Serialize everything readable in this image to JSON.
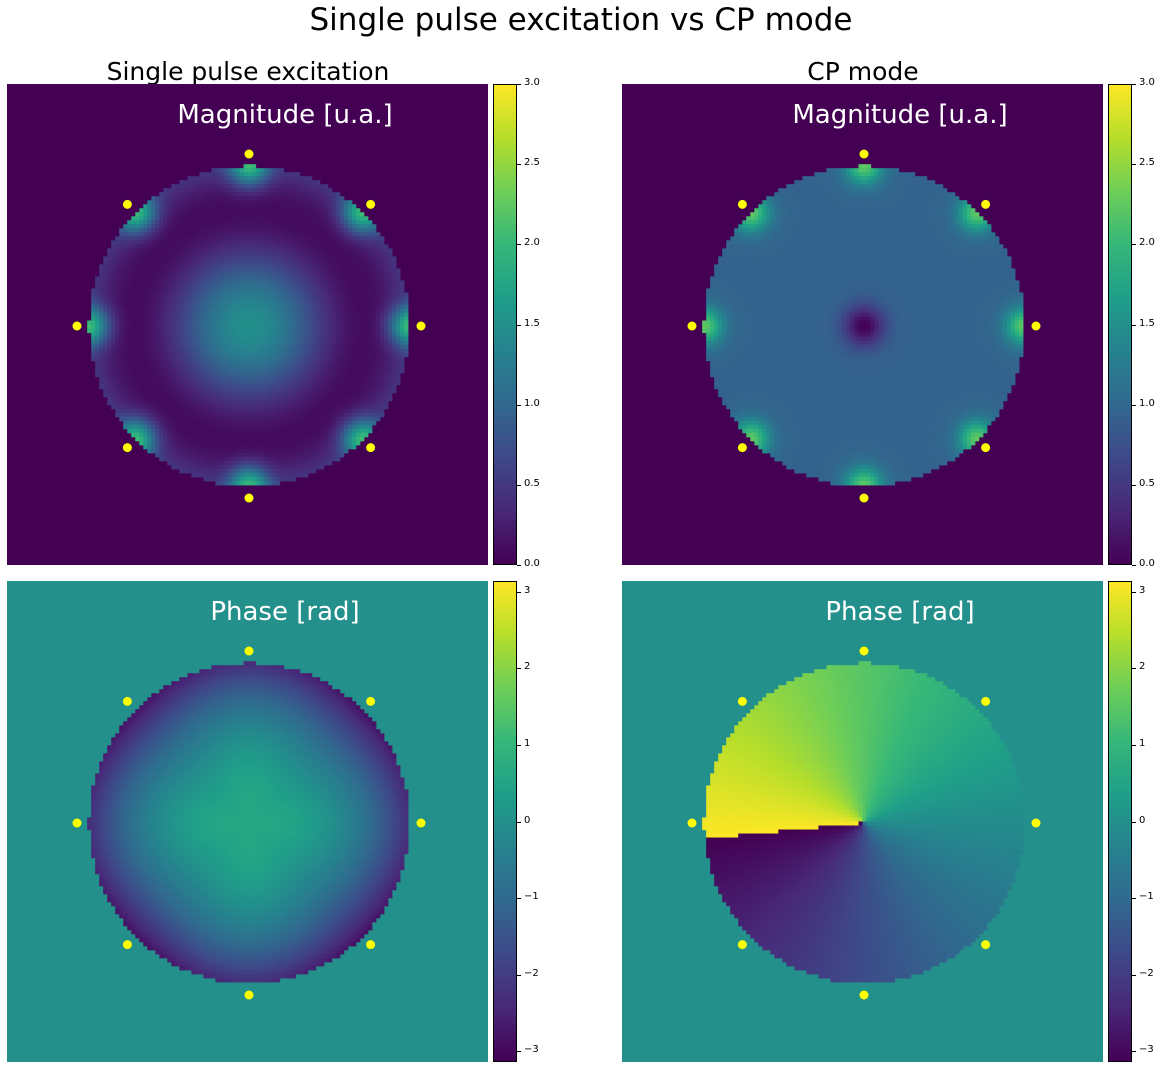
{
  "figure": {
    "suptitle": "Single pulse excitation vs CP mode"
  },
  "columns": [
    {
      "title": "Single pulse excitation"
    },
    {
      "title": "CP mode"
    }
  ],
  "panels": {
    "mag_single": {
      "label": "Magnitude [u.a.]"
    },
    "mag_cp": {
      "label": "Magnitude [u.a.]"
    },
    "phase_single": {
      "label": "Phase [rad]"
    },
    "phase_cp": {
      "label": "Phase [rad]"
    }
  },
  "colorbars": {
    "magnitude": {
      "min": 0.0,
      "max": 3.0,
      "ticks": [
        "0.0",
        "0.5",
        "1.0",
        "1.5",
        "2.0",
        "2.5",
        "3.0"
      ],
      "tick_values": [
        0,
        0.5,
        1.0,
        1.5,
        2.0,
        2.5,
        3.0
      ]
    },
    "phase": {
      "min": -3.14159,
      "max": 3.14159,
      "ticks": [
        "−3",
        "−2",
        "−1",
        "0",
        "1",
        "2",
        "3"
      ],
      "tick_values": [
        -3,
        -2,
        -1,
        0,
        1,
        2,
        3
      ]
    }
  },
  "colors": {
    "viridis": [
      "#440154",
      "#482878",
      "#3e4989",
      "#31688e",
      "#26828e",
      "#1f9e89",
      "#35b779",
      "#6ece58",
      "#b5de2b",
      "#fde725"
    ],
    "marker": "#ffff00"
  },
  "chart_data": [
    {
      "type": "heatmap",
      "title": "Magnitude [u.a.]",
      "column": "Single pulse excitation",
      "colormap": "viridis",
      "clim": [
        0,
        3
      ],
      "background_value": 0,
      "description_values": {
        "center": 1.5,
        "ring": 0.75,
        "near_coil": 2.5
      },
      "coil_count": 8
    },
    {
      "type": "heatmap",
      "title": "Magnitude [u.a.]",
      "column": "CP mode",
      "colormap": "viridis",
      "clim": [
        0,
        3
      ],
      "background_value": 0,
      "description_values": {
        "center": 0.1,
        "bulk": 0.95,
        "near_coil": 2.3
      },
      "coil_count": 8
    },
    {
      "type": "heatmap",
      "title": "Phase [rad]",
      "column": "Single pulse excitation",
      "colormap": "viridis",
      "clim": [
        -3.14159,
        3.14159
      ],
      "background_value": 0,
      "description_values": {
        "center": 0.6,
        "rim": -2.7
      },
      "coil_count": 8
    },
    {
      "type": "heatmap",
      "title": "Phase [rad]",
      "column": "CP mode",
      "colormap": "viridis",
      "clim": [
        -3.14159,
        3.14159
      ],
      "background_value": 0,
      "description_values": {
        "pattern": "angular phase wrap"
      },
      "coil_count": 8
    }
  ]
}
